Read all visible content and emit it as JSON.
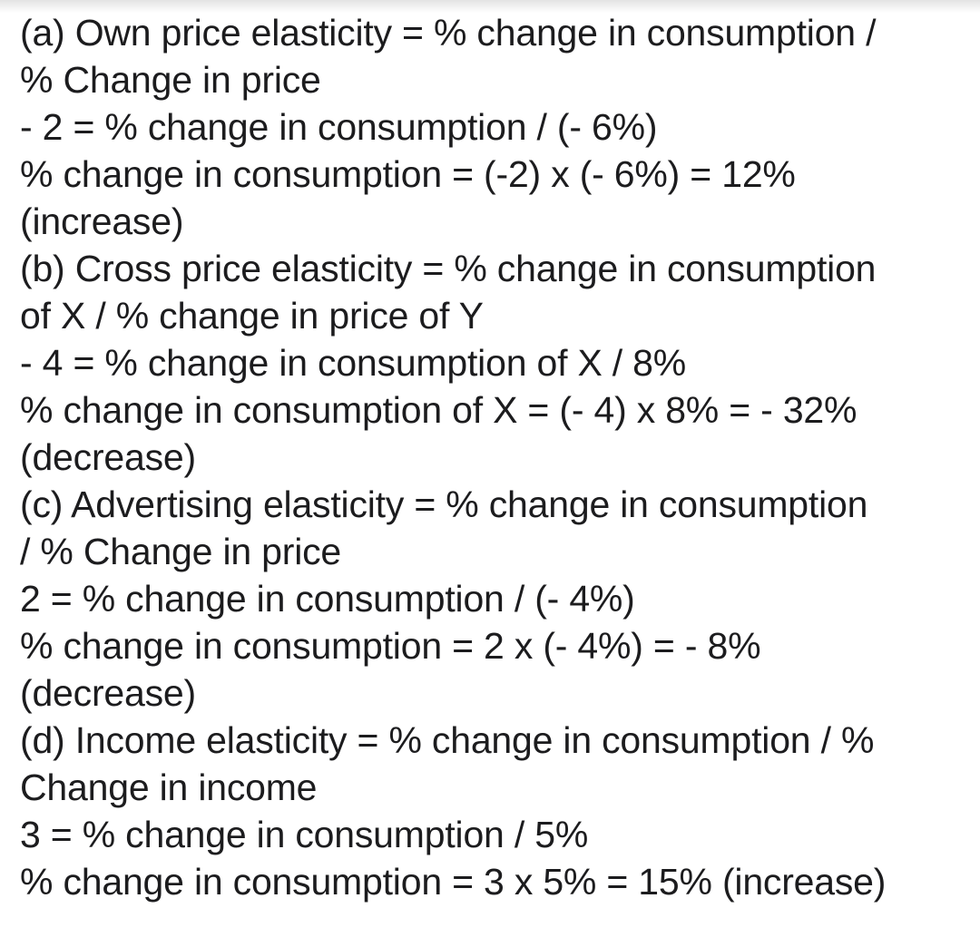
{
  "document": {
    "background_color": "#ffffff",
    "text_color": "#1c1c1e",
    "sections": [
      {
        "id": "a",
        "title": "Own price elasticity",
        "lines": [
          "(a) Own price elasticity = % change in consumption /",
          "% Change in price",
          "- 2 = % change in consumption / (- 6%)",
          "% change in consumption = (-2) x (- 6%) = 12%",
          "(increase)"
        ]
      },
      {
        "id": "b",
        "title": "Cross price elasticity",
        "lines": [
          "(b) Cross price elasticity = % change in consumption",
          "of X / % change in price of Y",
          "- 4 = % change in consumption of X / 8%",
          "% change in consumption of X = (- 4) x 8% = - 32%",
          "(decrease)"
        ]
      },
      {
        "id": "c",
        "title": "Advertising elasticity",
        "lines": [
          "(c) Advertising elasticity = % change in consumption",
          "/ % Change in price",
          "2 = % change in consumption / (- 4%)",
          "% change in consumption = 2 x (- 4%) = - 8%",
          "(decrease)"
        ]
      },
      {
        "id": "d",
        "title": "Income elasticity",
        "lines": [
          "(d) Income elasticity = % change in consumption / %",
          "Change in income",
          "3 = % change in consumption / 5%",
          "% change in consumption = 3 x 5% = 15% (increase)"
        ]
      }
    ]
  }
}
